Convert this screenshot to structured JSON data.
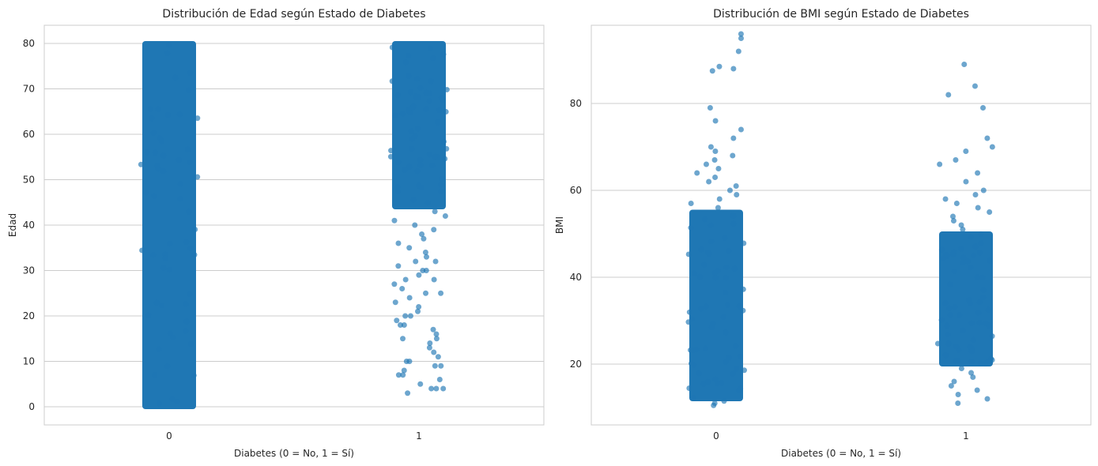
{
  "chart_data": [
    {
      "type": "scatter",
      "style": "strip plot (jittered)",
      "title": "Distribución de Edad según Estado de Diabetes",
      "xlabel": "Diabetes (0 = No, 1 = Sí)",
      "ylabel": "Edad",
      "categories": [
        "0",
        "1"
      ],
      "yticks": [
        "0",
        "10",
        "20",
        "30",
        "40",
        "50",
        "60",
        "70",
        "80"
      ],
      "ylim": [
        -4,
        84
      ],
      "grid": "horizontal",
      "series": [
        {
          "category": "0",
          "dense_range": [
            0,
            80
          ],
          "outliers": []
        },
        {
          "category": "1",
          "dense_range": [
            44,
            80
          ],
          "outliers": [
            3,
            4,
            4,
            4,
            5,
            6,
            7,
            7,
            8,
            9,
            9,
            10,
            10,
            11,
            12,
            13,
            14,
            15,
            15,
            16,
            17,
            18,
            18,
            19,
            20,
            20,
            21,
            22,
            23,
            24,
            25,
            25,
            26,
            27,
            28,
            28,
            29,
            30,
            30,
            31,
            32,
            32,
            33,
            34,
            35,
            36,
            37,
            38,
            39,
            40,
            41,
            42,
            43
          ]
        }
      ]
    },
    {
      "type": "scatter",
      "style": "strip plot (jittered)",
      "title": "Distribución de BMI según Estado de Diabetes",
      "xlabel": "Diabetes (0 = No, 1 = Sí)",
      "ylabel": "BMI",
      "categories": [
        "0",
        "1"
      ],
      "yticks": [
        "20",
        "40",
        "60",
        "80"
      ],
      "ylim": [
        6,
        98
      ],
      "grid": "horizontal",
      "series": [
        {
          "category": "0",
          "dense_range": [
            12,
            55
          ],
          "outliers": [
            10.5,
            11,
            11.5,
            56,
            57,
            58,
            59,
            60,
            61,
            62,
            63,
            64,
            65,
            66,
            67,
            68,
            69,
            70,
            72,
            74,
            76,
            79,
            87.5,
            88,
            88.5,
            92,
            95,
            96
          ]
        },
        {
          "category": "1",
          "dense_range": [
            20,
            50
          ],
          "outliers": [
            11,
            12,
            13,
            14,
            15,
            16,
            17,
            18,
            19,
            51,
            52,
            53,
            54,
            55,
            56,
            57,
            58,
            59,
            60,
            62,
            64,
            66,
            67,
            69,
            70,
            72,
            79,
            82,
            84,
            89
          ]
        }
      ]
    }
  ],
  "colors": {
    "point": "#1f77b4",
    "grid": "#cccccc",
    "spine": "#cccccc"
  }
}
